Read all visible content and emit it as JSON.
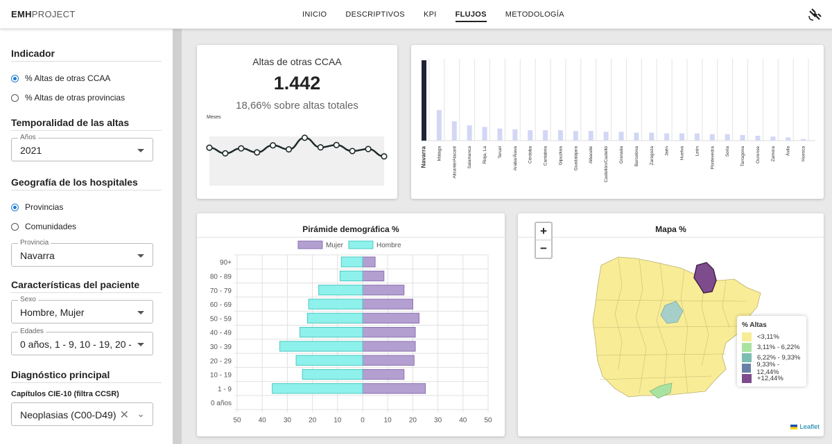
{
  "brand": {
    "bold": "EMH",
    "light": "PROJECT"
  },
  "nav": {
    "items": [
      "INICIO",
      "DESCRIPTIVOS",
      "KPI",
      "FLUJOS",
      "METODOLOGÍA"
    ],
    "active": "FLUJOS",
    "menu_icon": "satellite-icon"
  },
  "sidebar": {
    "indicador": {
      "title": "Indicador",
      "options": [
        "% Altas de otras CCAA",
        "% Altas de otras provincias"
      ],
      "selected": 0
    },
    "temporalidad": {
      "title": "Temporalidad de las altas",
      "field_label": "Años",
      "value": "2021"
    },
    "geografia": {
      "title": "Geografía de los hospitales",
      "options": [
        "Provincias",
        "Comunidades"
      ],
      "selected": 0,
      "field_label": "Provincia",
      "value": "Navarra"
    },
    "caracteristicas": {
      "title": "Características del paciente",
      "sexo_label": "Sexo",
      "sexo_value": "Hombre, Mujer",
      "edades_label": "Edades",
      "edades_value": "0 años, 1 - 9, 10 - 19, 20 - ..."
    },
    "diagnostico": {
      "title": "Diagnóstico principal",
      "capitulos_label": "Capítulos CIE-10 (filtra CCSR)",
      "capitulos_value": "Neoplasias (C00-D49)"
    }
  },
  "kpi": {
    "title": "Altas de otras CCAA",
    "value": "1.442",
    "subtitle": "18,66% sobre altas totales",
    "sparkline_label": "Meses",
    "sparkline": [
      0.62,
      0.45,
      0.6,
      0.48,
      0.69,
      0.57,
      0.92,
      0.63,
      0.7,
      0.52,
      0.58,
      0.36
    ]
  },
  "colors": {
    "accent": "#1e7bd6",
    "dark_bar": "#1f2235",
    "light_bar": "#d3d7f5",
    "mujer": "#b39fd0",
    "hombre": "#8ff1eb"
  },
  "chart_data": [
    {
      "type": "bar",
      "categories": [
        "Navarra",
        "Málaga",
        "Alicante/Alacant",
        "Salamanca",
        "Rioja, La",
        "Teruel",
        "Araba/Álava",
        "Córdoba",
        "Cantabria",
        "Gipuzkoa",
        "Guadalajara",
        "Albacete",
        "Castellón/Castelló",
        "Granada",
        "Barcelona",
        "Zaragoza",
        "Jaén",
        "Huelva",
        "León",
        "Pontevedra",
        "Soria",
        "Tarragona",
        "Ourense",
        "Zamora",
        "Ávila",
        "Huesca"
      ],
      "values": [
        100,
        38,
        24,
        19,
        17,
        15,
        14,
        13,
        13,
        13,
        12,
        12,
        11,
        11,
        10,
        10,
        9,
        9,
        9,
        8,
        8,
        7,
        6,
        5,
        4,
        2
      ],
      "grid": true
    },
    {
      "type": "bar",
      "title": "Pirámide demográfica %",
      "categories": [
        "90+",
        "80 - 89",
        "70 - 79",
        "60 - 69",
        "50 - 59",
        "40 - 49",
        "30 - 39",
        "20 - 29",
        "10 - 19",
        "1 - 9",
        "0 años"
      ],
      "series": [
        {
          "name": "Mujer",
          "values": [
            5,
            8.5,
            16.5,
            20,
            22.5,
            21,
            21,
            20.5,
            16.5,
            25,
            0
          ]
        },
        {
          "name": "Hombre",
          "values": [
            -8.5,
            -9,
            -17.5,
            -21.5,
            -22,
            -25,
            -33,
            -26.5,
            -24,
            -36,
            0
          ]
        }
      ],
      "xlim": [
        -50,
        50
      ],
      "xticks": [
        "50",
        "40",
        "30",
        "20",
        "10",
        "0",
        "10",
        "20",
        "30",
        "40",
        "50"
      ],
      "legend": "top-center",
      "grid": true
    }
  ],
  "map": {
    "title": "Mapa %",
    "zoom_in": "+",
    "zoom_out": "−",
    "legend_title": "% Altas",
    "legend": [
      {
        "label": "<3,11%",
        "color": "#f8ec96"
      },
      {
        "label": "3,11% - 6,22%",
        "color": "#a9e3a1"
      },
      {
        "label": "6,22% - 9,33%",
        "color": "#7bbdb0"
      },
      {
        "label": "9,33% - 12,44%",
        "color": "#6a7fa8"
      },
      {
        "label": "+12,44%",
        "color": "#7e4b8d"
      }
    ],
    "attribution": "Leaflet"
  }
}
